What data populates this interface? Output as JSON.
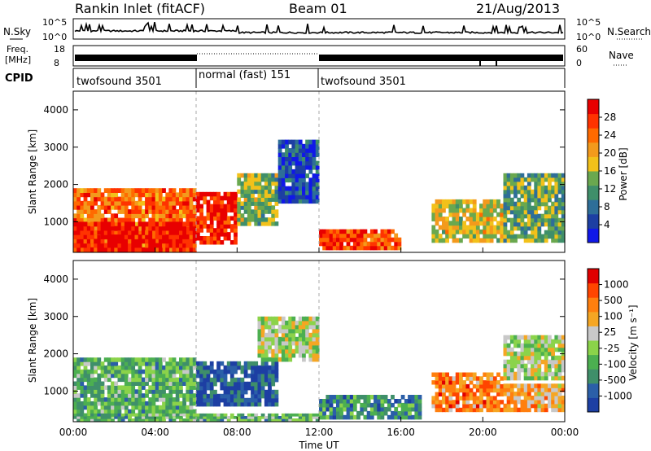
{
  "header": {
    "station": "Rankin Inlet (fitACF)",
    "beam": "Beam 01",
    "date": "21/Aug/2013"
  },
  "noise_panel": {
    "left_label": "N.Sky",
    "left_ticks": [
      "10^5",
      "10^0"
    ],
    "right_ticks": [
      "10^5",
      "10^0"
    ],
    "right_label": "N.Search"
  },
  "freq_panel": {
    "left_label_1": "Freq.",
    "left_label_2": "[MHz]",
    "left_ticks": [
      "18",
      "8"
    ],
    "right_ticks": [
      "60",
      "0"
    ],
    "right_label": "Nave"
  },
  "cpid": {
    "label": "CPID",
    "segments": [
      {
        "name": "twofsound 3501",
        "start_h": 0,
        "end_h": 6
      },
      {
        "name": "normal (fast) 151",
        "start_h": 6,
        "end_h": 12
      },
      {
        "name": "twofsound 3501",
        "start_h": 12,
        "end_h": 24
      }
    ]
  },
  "colors": {
    "power": [
      "#1018e8",
      "#1d3fa3",
      "#2e6e98",
      "#3f8f6a",
      "#6aa84f",
      "#f2c11a",
      "#f39a1c",
      "#ff6a00",
      "#ff3300",
      "#e80000"
    ],
    "velocity": [
      "#1d3fa3",
      "#2b5fa8",
      "#3f8f6a",
      "#4caf50",
      "#8bd34a",
      "#c8c8c8",
      "#f5a623",
      "#ff7f0e",
      "#ff4500",
      "#e00000"
    ]
  },
  "chart_data": [
    {
      "type": "heatmap",
      "title": "Power",
      "ylabel": "Slant Range [km]",
      "xlabel": "Time UT",
      "x_ticks": [
        "00:00",
        "04:00",
        "08:00",
        "12:00",
        "16:00",
        "20:00",
        "00:00"
      ],
      "y_ticks": [
        "1000",
        "2000",
        "3000",
        "4000"
      ],
      "xlim_hours": [
        0,
        24
      ],
      "ylim_km": [
        180,
        4500
      ],
      "colorbar": {
        "label": "Power [dB]",
        "ticks": [
          "28",
          "24",
          "20",
          "16",
          "12",
          "8",
          "4"
        ],
        "range": [
          0,
          30
        ]
      },
      "regions": [
        {
          "t0": 0,
          "t1": 6,
          "r0": 200,
          "r1": 1900,
          "level": 0.75
        },
        {
          "t0": 0,
          "t1": 6,
          "r0": 200,
          "r1": 1000,
          "level": 0.95
        },
        {
          "t0": 6,
          "t1": 8,
          "r0": 400,
          "r1": 1800,
          "level": 0.9
        },
        {
          "t0": 8,
          "t1": 10,
          "r0": 900,
          "r1": 2300,
          "level": 0.45
        },
        {
          "t0": 10,
          "t1": 12,
          "r0": 1500,
          "r1": 3200,
          "level": 0.15
        },
        {
          "t0": 12,
          "t1": 16,
          "r0": 250,
          "r1": 800,
          "level": 0.85
        },
        {
          "t0": 17.5,
          "t1": 21,
          "r0": 450,
          "r1": 1600,
          "level": 0.55
        },
        {
          "t0": 21,
          "t1": 24,
          "r0": 450,
          "r1": 2300,
          "level": 0.4
        }
      ]
    },
    {
      "type": "heatmap",
      "title": "Velocity",
      "ylabel": "Slant Range [km]",
      "xlabel": "Time UT",
      "x_ticks": [
        "00:00",
        "04:00",
        "08:00",
        "12:00",
        "16:00",
        "20:00",
        "00:00"
      ],
      "y_ticks": [
        "1000",
        "2000",
        "3000",
        "4000"
      ],
      "xlim_hours": [
        0,
        24
      ],
      "ylim_km": [
        180,
        4500
      ],
      "colorbar": {
        "label": "Velocity [m s⁻¹]",
        "ticks": [
          "1000",
          "500",
          "100",
          "25",
          "-25",
          "-100",
          "-500",
          "-1000"
        ],
        "range": [
          -1000,
          1000
        ]
      },
      "regions": [
        {
          "t0": 0,
          "t1": 6,
          "r0": 300,
          "r1": 1900,
          "level": 0.35
        },
        {
          "t0": 0,
          "t1": 12,
          "r0": 200,
          "r1": 400,
          "level": 0.35
        },
        {
          "t0": 6,
          "t1": 10,
          "r0": 600,
          "r1": 1800,
          "level": 0.1
        },
        {
          "t0": 9,
          "t1": 12,
          "r0": 1800,
          "r1": 3000,
          "level": 0.5
        },
        {
          "t0": 12,
          "t1": 17,
          "r0": 250,
          "r1": 900,
          "level": 0.25
        },
        {
          "t0": 17.5,
          "t1": 21,
          "r0": 450,
          "r1": 1500,
          "level": 0.75
        },
        {
          "t0": 21,
          "t1": 24,
          "r0": 1300,
          "r1": 2500,
          "level": 0.5
        },
        {
          "t0": 21,
          "t1": 24,
          "r0": 450,
          "r1": 1200,
          "level": 0.65
        }
      ]
    }
  ]
}
